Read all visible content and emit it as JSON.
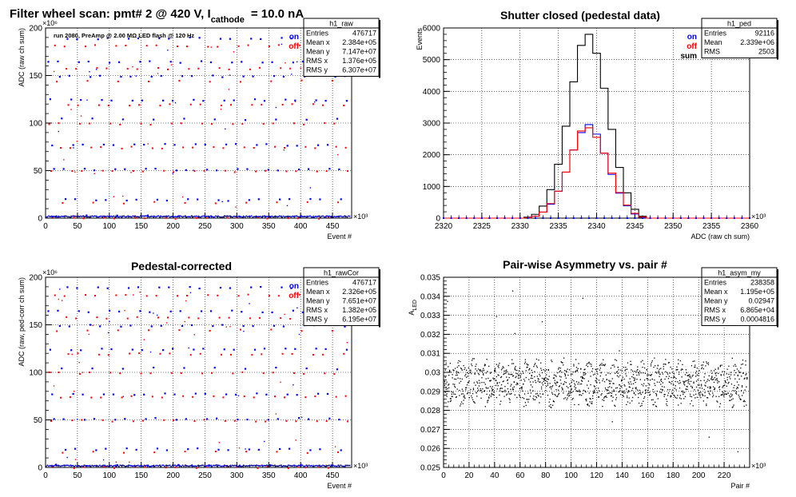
{
  "chart_data": [
    {
      "id": "raw",
      "type": "scatter",
      "title": "Filter wheel scan: pmt#   2 @   420 V, I",
      "title_sub": "cathode",
      "title_tail": "= 10.0 nA",
      "annotation": "run 2080, PreAmp @ 2.00 MΩ   LED flash @  120 Hz",
      "xlabel": "Event #",
      "ylabel": "ADC (raw ch sum)",
      "x_exponent": "×10³",
      "y_exponent": "×10⁶",
      "xlim": [
        0,
        480
      ],
      "ylim": [
        0,
        200
      ],
      "x_ticks": [
        "0",
        "50",
        "100",
        "150",
        "200",
        "250",
        "300",
        "350",
        "400",
        "450"
      ],
      "y_ticks": [
        "0",
        "50",
        "100",
        "150",
        "200"
      ],
      "grid": true,
      "legend": {
        "position": "top-right",
        "entries": [
          {
            "label": "on",
            "color": "#0000ff"
          },
          {
            "label": "off",
            "color": "#ff0000"
          }
        ]
      },
      "stats_box": {
        "name": "h1_raw",
        "rows": [
          [
            "Entries",
            "476717"
          ],
          [
            "Mean x",
            "2.384e+05"
          ],
          [
            "Mean y",
            "7.147e+07"
          ],
          [
            "RMS x",
            "1.376e+05"
          ],
          [
            "RMS y",
            "6.307e+07"
          ]
        ]
      },
      "levels_on": [
        190,
        165,
        150,
        125,
        105,
        78,
        52,
        20,
        3
      ],
      "levels_off": [
        182,
        158,
        145,
        120,
        100,
        75,
        50,
        17,
        1
      ],
      "period": 16
    },
    {
      "id": "ped",
      "type": "step",
      "title": "Shutter closed (pedestal data)",
      "xlabel": "ADC (raw ch sum)",
      "ylabel": "Events",
      "x_exponent": "×10³",
      "xlim": [
        2320,
        2360
      ],
      "ylim": [
        0,
        6000
      ],
      "x_ticks": [
        "2320",
        "2325",
        "2330",
        "2335",
        "2340",
        "2345",
        "2350",
        "2355",
        "2360"
      ],
      "y_ticks": [
        "0",
        "1000",
        "2000",
        "3000",
        "4000",
        "5000",
        "6000"
      ],
      "grid": true,
      "legend": {
        "position": "top-right",
        "entries": [
          {
            "label": "on",
            "color": "#0000ff"
          },
          {
            "label": "off",
            "color": "#ff0000"
          },
          {
            "label": "sum",
            "color": "#000000"
          }
        ]
      },
      "stats_box": {
        "name": "h1_ped",
        "rows": [
          [
            "Entries",
            "92116"
          ],
          [
            "Mean",
            "2.339e+06"
          ],
          [
            "RMS",
            "2503"
          ]
        ]
      },
      "bin_width": 1,
      "series": [
        {
          "name": "sum",
          "color": "#000000",
          "x": [
            2331,
            2332,
            2333,
            2334,
            2335,
            2336,
            2337,
            2338,
            2339,
            2340,
            2341,
            2342,
            2343,
            2344,
            2345,
            2346
          ],
          "values": [
            30,
            120,
            380,
            900,
            1700,
            2900,
            4300,
            5450,
            5800,
            5200,
            4100,
            2800,
            1600,
            800,
            280,
            60
          ]
        },
        {
          "name": "on",
          "color": "#0000ff",
          "x": [
            2331,
            2332,
            2333,
            2334,
            2335,
            2336,
            2337,
            2338,
            2339,
            2340,
            2341,
            2342,
            2343,
            2344,
            2345,
            2346
          ],
          "values": [
            15,
            60,
            190,
            440,
            850,
            1450,
            2150,
            2700,
            2950,
            2650,
            2050,
            1380,
            790,
            390,
            130,
            25
          ]
        },
        {
          "name": "off",
          "color": "#ff0000",
          "x": [
            2331,
            2332,
            2333,
            2334,
            2335,
            2336,
            2337,
            2338,
            2339,
            2340,
            2341,
            2342,
            2343,
            2344,
            2345,
            2346
          ],
          "values": [
            15,
            60,
            190,
            460,
            850,
            1450,
            2150,
            2750,
            2850,
            2550,
            2050,
            1420,
            810,
            410,
            150,
            35
          ]
        }
      ]
    },
    {
      "id": "rawcor",
      "type": "scatter",
      "title": "Pedestal-corrected",
      "xlabel": "Event #",
      "ylabel": "ADC (raw, ped-corr ch sum)",
      "x_exponent": "×10³",
      "y_exponent": "×10⁶",
      "xlim": [
        0,
        480
      ],
      "ylim": [
        0,
        200
      ],
      "x_ticks": [
        "0",
        "50",
        "100",
        "150",
        "200",
        "250",
        "300",
        "350",
        "400",
        "450"
      ],
      "y_ticks": [
        "0",
        "50",
        "100",
        "150",
        "200"
      ],
      "grid": true,
      "legend": {
        "position": "top-right",
        "entries": [
          {
            "label": "on",
            "color": "#0000ff"
          },
          {
            "label": "off",
            "color": "#ff0000"
          }
        ]
      },
      "stats_box": {
        "name": "h1_rawCor",
        "rows": [
          [
            "Entries",
            "476717"
          ],
          [
            "Mean x",
            "2.326e+05"
          ],
          [
            "Mean y",
            "7.651e+07"
          ],
          [
            "RMS x",
            "1.382e+05"
          ],
          [
            "RMS y",
            "6.195e+07"
          ]
        ]
      },
      "levels_on": [
        190,
        165,
        150,
        125,
        105,
        78,
        52,
        20,
        3
      ],
      "levels_off": [
        182,
        158,
        145,
        120,
        100,
        75,
        50,
        17,
        1
      ],
      "period": 16
    },
    {
      "id": "asym",
      "type": "scatter",
      "title": "Pair-wise Asymmetry vs. pair #",
      "xlabel": "Pair #",
      "ylabel": "A_LED",
      "x_exponent": "×10³",
      "xlim": [
        0,
        240
      ],
      "ylim": [
        0.025,
        0.035
      ],
      "x_ticks": [
        "0",
        "20",
        "40",
        "60",
        "80",
        "100",
        "120",
        "140",
        "160",
        "180",
        "200",
        "220"
      ],
      "y_ticks": [
        "0.025",
        "0.026",
        "0.027",
        "0.028",
        "0.029",
        "0.03",
        "0.031",
        "0.032",
        "0.033",
        "0.034",
        "0.035"
      ],
      "grid": true,
      "stats_box": {
        "name": "h1_asym_my",
        "rows": [
          [
            "Entries",
            "238358"
          ],
          [
            "Mean x",
            "1.195e+05"
          ],
          [
            "Mean y",
            "0.02947"
          ],
          [
            "RMS x",
            "6.865e+04"
          ],
          [
            "RMS y",
            "0.0004816"
          ]
        ]
      },
      "mean_y": 0.02947,
      "rms_y": 0.0004816
    }
  ]
}
